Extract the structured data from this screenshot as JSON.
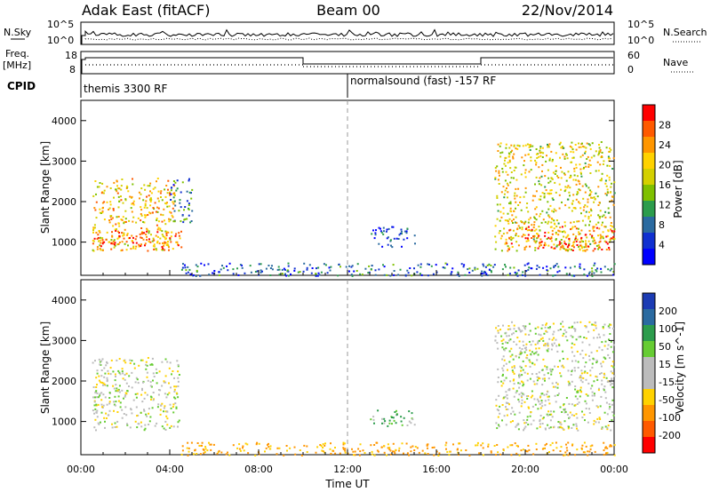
{
  "header": {
    "station": "Adak East (fitACF)",
    "beam": "Beam 00",
    "date": "22/Nov/2014"
  },
  "noise_panel": {
    "left_label": "N.Sky",
    "right_label": "N.Search",
    "y_ticks": [
      "10^5",
      "10^0"
    ],
    "y_ticks_right": [
      "10^5",
      "10^0"
    ]
  },
  "freq_panel": {
    "left_label_1": "Freq.",
    "left_label_2": "[MHz]",
    "right_label": "Nave",
    "y_ticks_left": [
      "18",
      "8"
    ],
    "y_ticks_right": [
      "60",
      "0"
    ]
  },
  "cpid": {
    "label": "CPID",
    "segments": [
      {
        "name": "themis 3300 RF",
        "start_hour": 0,
        "end_hour": 12
      },
      {
        "name": "normalsound (fast) -157 RF",
        "start_hour": 12,
        "end_hour": 24
      }
    ]
  },
  "chart_data": [
    {
      "type": "heatmap",
      "title": "Power",
      "xlabel": "",
      "ylabel": "Slant Range [km]",
      "xlim": [
        0,
        24
      ],
      "ylim": [
        180,
        4500
      ],
      "y_ticks": [
        1000,
        2000,
        3000,
        4000
      ],
      "colorbar": {
        "label": "Power [dB]",
        "ticks": [
          "28",
          "24",
          "20",
          "16",
          "12",
          "8",
          "4"
        ],
        "colors": [
          "#ff0000",
          "#ff5a00",
          "#ff9600",
          "#ffd200",
          "#d4d000",
          "#7fc000",
          "#2c9c4c",
          "#2a6aa0",
          "#1030d0",
          "#0000ff"
        ]
      },
      "echo_regions": [
        {
          "t_start": 0.5,
          "t_end": 4.2,
          "range_start": 800,
          "range_end": 2600,
          "power_db": 22
        },
        {
          "t_start": 0.5,
          "t_end": 4.6,
          "range_start": 800,
          "range_end": 1300,
          "power_db": 28
        },
        {
          "t_start": 4.0,
          "t_end": 5.0,
          "range_start": 1500,
          "range_end": 2600,
          "power_db": 10
        },
        {
          "t_start": 13.0,
          "t_end": 15.0,
          "range_start": 900,
          "range_end": 1400,
          "power_db": 6
        },
        {
          "t_start": 18.6,
          "t_end": 24.0,
          "range_start": 800,
          "range_end": 3500,
          "power_db": 20
        },
        {
          "t_start": 19.0,
          "t_end": 24.0,
          "range_start": 800,
          "range_end": 1400,
          "power_db": 28
        },
        {
          "t_start": 4.5,
          "t_end": 24.0,
          "range_start": 180,
          "range_end": 500,
          "power_db": 8
        }
      ]
    },
    {
      "type": "heatmap",
      "title": "Velocity",
      "xlabel": "Time UT",
      "ylabel": "Slant Range [km]",
      "xlim": [
        0,
        24
      ],
      "ylim": [
        180,
        4500
      ],
      "x_ticks": [
        "00:00",
        "04:00",
        "08:00",
        "12:00",
        "16:00",
        "20:00",
        "00:00"
      ],
      "y_ticks": [
        1000,
        2000,
        3000,
        4000
      ],
      "colorbar": {
        "label": "Velocity [m s^-1]",
        "ticks": [
          "200",
          "100",
          "50",
          "15",
          "-15",
          "-50",
          "-100",
          "-200"
        ],
        "colors": [
          "#1c3cb4",
          "#2a6aa0",
          "#2c9c4c",
          "#66cc33",
          "#bcbcbc",
          "#bcbcbc",
          "#ffd200",
          "#ff9600",
          "#ff5a00",
          "#ff0000"
        ]
      },
      "echo_regions": [
        {
          "t_start": 0.5,
          "t_end": 4.4,
          "range_start": 800,
          "range_end": 2600,
          "velocity": 0
        },
        {
          "t_start": 13.0,
          "t_end": 15.0,
          "range_start": 900,
          "range_end": 1300,
          "velocity": 30
        },
        {
          "t_start": 18.6,
          "t_end": 24.0,
          "range_start": 800,
          "range_end": 3500,
          "velocity": 0
        },
        {
          "t_start": 4.5,
          "t_end": 24.0,
          "range_start": 180,
          "range_end": 500,
          "velocity": -60
        }
      ]
    }
  ]
}
